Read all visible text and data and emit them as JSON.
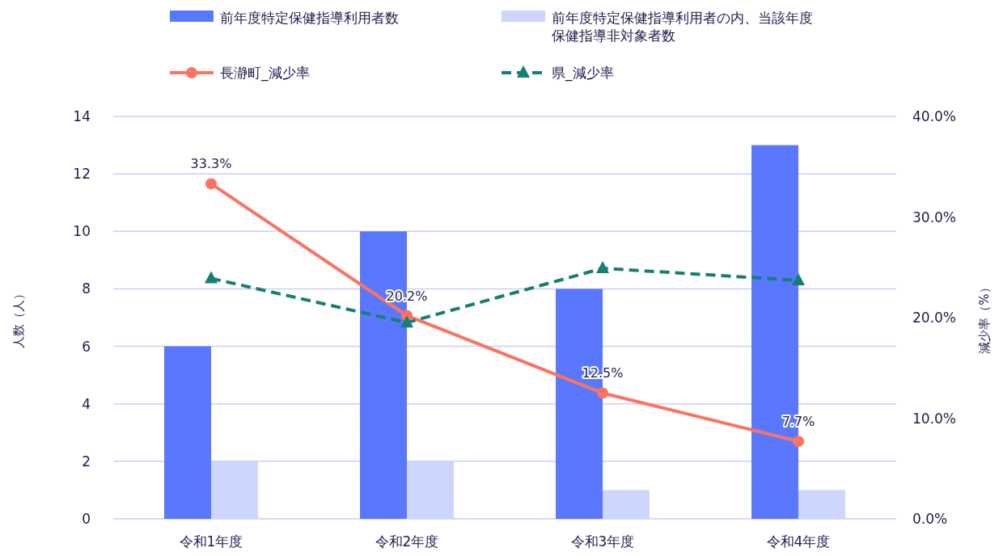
{
  "chart_data": {
    "type": "bar",
    "categories": [
      "令和1年度",
      "令和2年度",
      "令和3年度",
      "令和4年度"
    ],
    "ylabel": "人数（人）",
    "y2label": "減少率（%）",
    "ylim": [
      0,
      14
    ],
    "yticks": [
      0,
      2,
      4,
      6,
      8,
      10,
      12,
      14
    ],
    "y2lim": [
      0,
      40
    ],
    "y2ticks": [
      {
        "value": 0,
        "label": "0.0%"
      },
      {
        "value": 10,
        "label": "10.0%"
      },
      {
        "value": 20,
        "label": "20.0%"
      },
      {
        "value": 30,
        "label": "30.0%"
      },
      {
        "value": 40,
        "label": "40.0%"
      }
    ],
    "grid": "y",
    "legend": "top",
    "series": [
      {
        "name": "前年度特定保健指導利用者数",
        "color": "#5a78ff",
        "values": [
          6,
          10,
          8,
          13
        ]
      },
      {
        "name": "前年度特定保健指導利用者の内、当該年度保健指導非対象者数",
        "color": "#cdd6fd",
        "values": [
          2,
          2,
          1,
          1
        ]
      },
      {
        "name": "長瀞町_減少率",
        "type": "line",
        "axis": "y2",
        "color": "#fa7461",
        "marker": "circle",
        "line_style": "solid",
        "values": [
          33.3,
          20.2,
          12.5,
          7.7
        ],
        "value_labels": [
          "33.3%",
          "20.2%",
          "12.5%",
          "7.7%"
        ]
      },
      {
        "name": "県_減少率",
        "type": "line",
        "axis": "y2",
        "color": "#157f72",
        "marker": "triangle",
        "line_style": "dashed",
        "values": [
          23.9,
          19.5,
          24.9,
          23.7
        ]
      }
    ]
  }
}
